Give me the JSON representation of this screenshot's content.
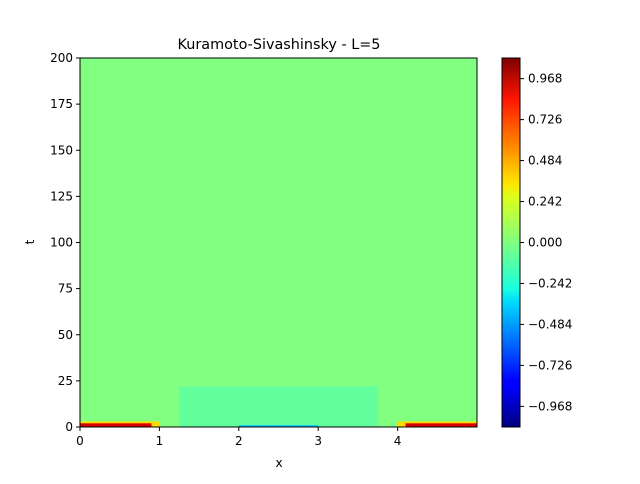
{
  "chart_data": {
    "type": "heatmap",
    "title": "Kuramoto-Sivashinsky - L=5",
    "xlabel": "x",
    "ylabel": "t",
    "xlim": [
      0,
      5
    ],
    "ylim": [
      0,
      200
    ],
    "x_ticks": [
      0,
      1,
      2,
      3,
      4
    ],
    "y_ticks": [
      0,
      25,
      50,
      75,
      100,
      125,
      150,
      175,
      200
    ],
    "colormap": "jet",
    "color_range": [
      -1.09,
      1.09
    ],
    "colorbar_ticks": [
      "0.968",
      "0.726",
      "0.484",
      "0.242",
      "0.000",
      "−0.242",
      "−0.484",
      "−0.726",
      "−0.968"
    ],
    "colorbar_tick_values": [
      0.968,
      0.726,
      0.484,
      0.242,
      0.0,
      -0.242,
      -0.484,
      -0.726,
      -0.968
    ],
    "background_value": 0.0,
    "features": [
      {
        "t_range": [
          0,
          22
        ],
        "x_range": [
          1.25,
          3.75
        ],
        "value": -0.06
      },
      {
        "t_range": [
          0,
          3
        ],
        "x_range": [
          0,
          1.0
        ],
        "value": 0.35
      },
      {
        "t_range": [
          0,
          2
        ],
        "x_range": [
          0,
          0.9
        ],
        "value": 0.9
      },
      {
        "t_range": [
          0,
          3
        ],
        "x_range": [
          4.0,
          5.0
        ],
        "value": 0.35
      },
      {
        "t_range": [
          0,
          2
        ],
        "x_range": [
          4.1,
          5.0
        ],
        "value": 0.9
      },
      {
        "t_range": [
          0,
          1
        ],
        "x_range": [
          2.0,
          3.0
        ],
        "value": -0.4
      }
    ]
  }
}
